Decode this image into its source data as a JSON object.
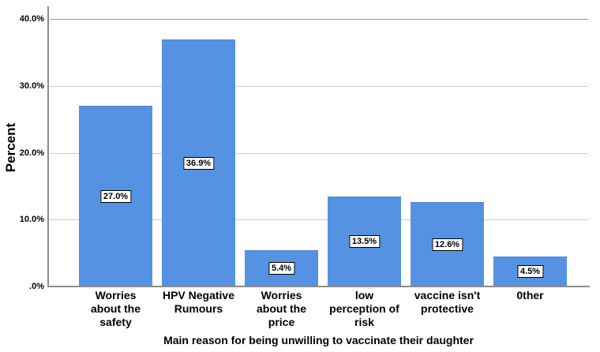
{
  "chart_data": {
    "type": "bar",
    "title": "",
    "xlabel": "Main reason for being unwilling to vaccinate their daughter",
    "ylabel": "Percent",
    "categories": [
      "Worries\nabout the\nsafety",
      "HPV Negative\nRumours",
      "Worries\nabout the\nprice",
      "low\nperception of\nrisk",
      "vaccine isn't\nprotective",
      "0ther"
    ],
    "values": [
      27.0,
      36.9,
      5.4,
      13.5,
      12.6,
      4.5
    ],
    "bar_labels": [
      "27.0%",
      "36.9%",
      "5.4%",
      "13.5%",
      "12.6%",
      "4.5%"
    ],
    "yticks": [
      {
        "value": 0,
        "label": ".0%"
      },
      {
        "value": 10,
        "label": "10.0%"
      },
      {
        "value": 20,
        "label": "20.0%"
      },
      {
        "value": 30,
        "label": "30.0%"
      },
      {
        "value": 40,
        "label": "40.0%"
      }
    ],
    "ylim": [
      0,
      41.9
    ],
    "grid": true,
    "legend": false,
    "colors": {
      "bar_fill": "#5593E2",
      "bar_edge": "#4a86d8",
      "axis_line": "#8c8c8c",
      "gridline": "#cbcbcb",
      "gridline_top": "#9a9a9a",
      "value_box_bg": "#ffffff",
      "value_box_border": "#000000",
      "text": "#000000"
    }
  }
}
